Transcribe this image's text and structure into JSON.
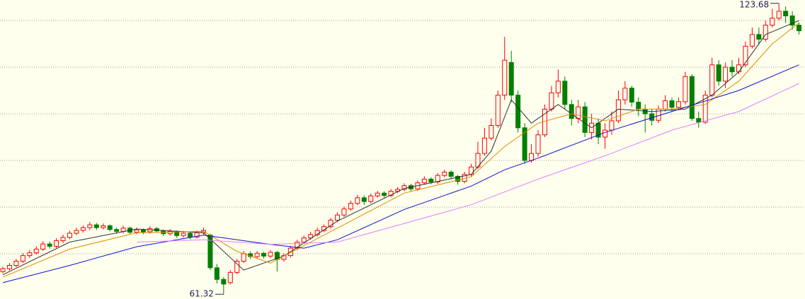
{
  "chart_data": {
    "type": "candlestick",
    "ylim": [
      60.3,
      124.4
    ],
    "yticks": [
      70,
      80,
      90,
      100,
      110,
      120
    ],
    "grid": true,
    "up_color": "#ff0000",
    "down_color": "#008000",
    "open": [
      66.2,
      66.8,
      67.5,
      68.4,
      69.6,
      70.2,
      71.0,
      72.1,
      71.6,
      72.8,
      73.5,
      74.4,
      75.0,
      75.6,
      76.2,
      75.6,
      76.0,
      75.2,
      74.8,
      75.5,
      74.6,
      75.1,
      74.7,
      75.4,
      74.9,
      74.3,
      74.8,
      73.9,
      74.4,
      73.6,
      74.5,
      74.0,
      67.0,
      64.5,
      63.8,
      66.0,
      68.4,
      70.0,
      69.4,
      70.1,
      69.5,
      70.3,
      68.8,
      69.6,
      71.2,
      72.5,
      73.4,
      74.1,
      75.0,
      75.8,
      77.2,
      78.3,
      79.6,
      80.8,
      82.0,
      81.2,
      82.4,
      83.0,
      82.5,
      83.4,
      83.8,
      84.6,
      83.9,
      85.2,
      86.0,
      85.4,
      86.8,
      87.5,
      86.6,
      85.5,
      87.0,
      88.6,
      91.5,
      94.8,
      97.5,
      104.0,
      111.0,
      104.0,
      97.0,
      90.0,
      91.5,
      95.5,
      101.0,
      104.5,
      107.0,
      102.0,
      99.0,
      101.5,
      96.0,
      98.0,
      95.0,
      96.5,
      98.5,
      103.0,
      105.5,
      102.5,
      101.0,
      100.0,
      98.6,
      101.0,
      102.8,
      101.4,
      102.6,
      108.0,
      99.0,
      98.2,
      104.0,
      110.5,
      107.0,
      110.0,
      109.0,
      110.5,
      114.5,
      117.0,
      116.0,
      119.0,
      120.5,
      122.0,
      121.0,
      119.0
    ],
    "high": [
      67.2,
      68.0,
      68.9,
      70.1,
      70.8,
      71.6,
      72.7,
      72.6,
      73.3,
      74.1,
      74.9,
      75.6,
      76.1,
      76.8,
      76.6,
      76.5,
      76.3,
      75.6,
      76.0,
      75.8,
      75.6,
      75.4,
      75.9,
      75.7,
      75.2,
      75.3,
      75.0,
      74.9,
      74.6,
      75.0,
      75.6,
      74.3,
      67.8,
      65.0,
      66.5,
      68.9,
      70.6,
      70.5,
      70.6,
      70.4,
      70.8,
      70.6,
      70.1,
      71.7,
      73.0,
      73.9,
      74.7,
      75.6,
      76.3,
      77.7,
      78.9,
      80.1,
      81.4,
      82.6,
      82.5,
      82.9,
      83.5,
      83.4,
      83.9,
      84.3,
      85.1,
      85.0,
      85.7,
      86.6,
      86.4,
      87.3,
      88.0,
      87.9,
      86.9,
      87.6,
      89.3,
      94.0,
      97.0,
      99.0,
      105.0,
      116.5,
      113.5,
      105.0,
      98.0,
      93.5,
      96.5,
      102.0,
      106.0,
      109.5,
      108.0,
      103.0,
      103.0,
      102.5,
      100.0,
      99.0,
      98.0,
      100.5,
      105.0,
      107.0,
      106.0,
      103.5,
      102.0,
      101.0,
      101.8,
      104.0,
      103.5,
      103.5,
      109.0,
      108.5,
      100.5,
      105.0,
      112.0,
      111.5,
      111.0,
      111.5,
      112.0,
      115.5,
      118.5,
      118.5,
      120.0,
      122.5,
      123.68,
      123.0,
      122.0,
      119.6
    ],
    "low": [
      65.8,
      66.4,
      67.1,
      68.0,
      69.1,
      69.8,
      70.6,
      71.1,
      71.2,
      72.3,
      73.1,
      74.0,
      74.5,
      75.1,
      75.1,
      75.2,
      74.8,
      74.3,
      74.4,
      74.2,
      74.2,
      74.2,
      74.3,
      74.5,
      73.8,
      73.9,
      73.4,
      73.5,
      73.1,
      73.3,
      74.1,
      66.5,
      63.6,
      61.32,
      63.4,
      65.6,
      68.0,
      68.9,
      69.0,
      69.0,
      69.1,
      66.2,
      68.3,
      69.2,
      70.8,
      72.1,
      73.0,
      73.7,
      74.6,
      75.4,
      76.8,
      77.9,
      79.2,
      80.4,
      80.5,
      80.8,
      82.0,
      82.0,
      82.1,
      83.0,
      83.4,
      83.4,
      83.5,
      84.8,
      84.9,
      85.0,
      86.4,
      86.0,
      84.8,
      85.1,
      86.6,
      88.2,
      91.0,
      94.3,
      97.0,
      103.0,
      102.5,
      96.0,
      89.3,
      89.5,
      90.8,
      95.0,
      100.5,
      103.5,
      101.0,
      97.5,
      98.0,
      95.0,
      94.5,
      93.5,
      92.5,
      95.5,
      98.0,
      102.0,
      101.5,
      99.5,
      96.0,
      97.5,
      98.0,
      100.5,
      100.5,
      100.8,
      102.0,
      98.5,
      97.0,
      97.8,
      103.5,
      106.0,
      105.5,
      108.0,
      108.5,
      110.0,
      114.0,
      114.8,
      115.5,
      118.5,
      120.0,
      119.5,
      118.0,
      117.0
    ],
    "close": [
      66.8,
      67.5,
      68.4,
      69.6,
      70.2,
      71.0,
      72.1,
      71.6,
      72.8,
      73.5,
      74.4,
      75.0,
      75.6,
      76.2,
      75.6,
      76.0,
      75.2,
      74.8,
      75.5,
      74.6,
      75.1,
      74.7,
      75.4,
      74.9,
      74.3,
      74.8,
      73.9,
      74.4,
      73.6,
      74.5,
      75.0,
      67.0,
      64.5,
      63.5,
      66.0,
      68.4,
      70.0,
      69.4,
      70.1,
      69.5,
      70.3,
      68.8,
      69.6,
      71.2,
      72.5,
      73.4,
      74.1,
      75.0,
      75.8,
      77.2,
      78.3,
      79.6,
      80.8,
      82.0,
      81.2,
      82.4,
      83.0,
      82.5,
      83.4,
      83.8,
      84.6,
      83.9,
      85.2,
      86.0,
      85.4,
      86.8,
      87.5,
      86.6,
      85.5,
      87.0,
      88.6,
      91.5,
      94.8,
      97.5,
      104.0,
      111.5,
      104.0,
      97.0,
      90.0,
      91.5,
      95.5,
      101.0,
      104.5,
      107.0,
      102.0,
      99.0,
      101.5,
      96.0,
      98.0,
      95.0,
      96.5,
      98.5,
      103.0,
      105.5,
      102.5,
      101.0,
      100.0,
      98.6,
      101.0,
      102.8,
      101.4,
      102.6,
      108.0,
      99.0,
      98.2,
      104.0,
      110.5,
      107.0,
      110.0,
      109.0,
      110.5,
      114.5,
      117.0,
      116.0,
      119.0,
      120.5,
      122.0,
      121.0,
      119.0,
      117.8
    ],
    "lines": [
      {
        "color": "#303030",
        "x": [
          0,
          10,
          20,
          30,
          33,
          36,
          42,
          50,
          60,
          70,
          73,
          76,
          79,
          83,
          88,
          92,
          97,
          102,
          106,
          110,
          114,
          119
        ],
        "values": [
          65.5,
          72.5,
          75.3,
          74.5,
          70.5,
          66.5,
          69.5,
          77.0,
          84.0,
          87.0,
          92.0,
          103.0,
          98.0,
          102.0,
          97.0,
          101.0,
          100.5,
          101.0,
          104.0,
          109.0,
          117.0,
          120.0
        ]
      },
      {
        "color": "#e08c00",
        "x": [
          0,
          10,
          20,
          30,
          35,
          40,
          50,
          60,
          70,
          75,
          80,
          85,
          90,
          95,
          100,
          105,
          110,
          115,
          119
        ],
        "values": [
          65.0,
          71.0,
          74.5,
          74.8,
          70.5,
          68.0,
          75.5,
          83.0,
          86.5,
          93.0,
          98.0,
          100.0,
          98.5,
          101.0,
          101.0,
          102.0,
          107.0,
          115.0,
          119.5
        ]
      },
      {
        "color": "#1010d0",
        "x": [
          0,
          10,
          20,
          30,
          40,
          45,
          50,
          60,
          70,
          75,
          80,
          90,
          100,
          110,
          119
        ],
        "values": [
          63.8,
          67.5,
          71.5,
          74.0,
          72.0,
          71.2,
          73.0,
          79.5,
          84.5,
          88.0,
          90.5,
          96.0,
          100.5,
          105.0,
          110.5
        ]
      },
      {
        "color": "#e080ff",
        "x": [
          20,
          30,
          40,
          50,
          60,
          70,
          80,
          90,
          100,
          110,
          119
        ],
        "values": [
          72.5,
          73.0,
          72.0,
          72.5,
          76.5,
          80.5,
          86.0,
          91.0,
          96.5,
          100.5,
          106.5
        ]
      }
    ],
    "annotations": [
      "123.68",
      "61.32"
    ]
  }
}
